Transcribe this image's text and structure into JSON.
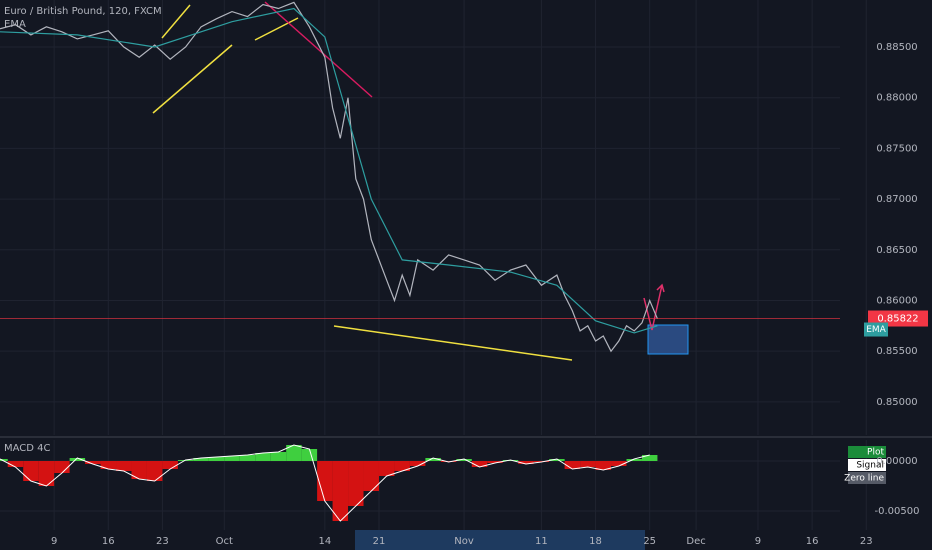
{
  "chart_data": [
    {
      "type": "line",
      "title": "Euro / British Pound, 120, FXCM",
      "subtitle": "EMA",
      "color": "#b2b5be",
      "x": [
        -7,
        -5,
        -3,
        -1,
        1,
        3,
        5,
        7,
        9,
        11,
        13,
        15,
        17,
        19,
        21,
        23,
        25,
        27,
        29,
        31,
        33,
        35,
        36,
        37,
        38,
        39,
        40,
        41,
        42,
        43,
        44,
        45,
        46,
        47,
        49,
        51,
        53,
        55,
        57,
        59,
        61,
        63,
        65,
        66,
        67,
        68,
        69,
        70,
        71,
        72,
        73,
        74,
        75,
        76,
        77,
        78
      ],
      "values": [
        0.8868,
        0.8872,
        0.8862,
        0.887,
        0.8865,
        0.8858,
        0.8862,
        0.8866,
        0.885,
        0.884,
        0.8852,
        0.8838,
        0.885,
        0.887,
        0.8878,
        0.8885,
        0.888,
        0.8892,
        0.8888,
        0.8894,
        0.887,
        0.884,
        0.879,
        0.876,
        0.88,
        0.872,
        0.87,
        0.866,
        0.864,
        0.862,
        0.86,
        0.8625,
        0.8605,
        0.864,
        0.863,
        0.8645,
        0.864,
        0.8635,
        0.862,
        0.863,
        0.8635,
        0.8615,
        0.8625,
        0.8605,
        0.859,
        0.857,
        0.8575,
        0.856,
        0.8565,
        0.855,
        0.856,
        0.8575,
        0.857,
        0.8578,
        0.86,
        0.8582
      ],
      "overlay": {
        "name": "EMA",
        "color": "#2e9ea0",
        "x": [
          -7,
          3,
          13,
          23,
          31,
          35,
          38,
          41,
          45,
          51,
          59,
          65,
          70,
          75,
          78
        ],
        "values": [
          0.8865,
          0.8862,
          0.885,
          0.8875,
          0.8888,
          0.886,
          0.878,
          0.87,
          0.864,
          0.8635,
          0.8628,
          0.8615,
          0.858,
          0.8568,
          0.8575
        ]
      },
      "last_price": {
        "value": 0.85822,
        "label": "0.85822"
      },
      "xlim": [
        -7,
        113.5
      ],
      "ylim": [
        0.84673,
        0.88964
      ],
      "yticks": [
        {
          "value": 0.885,
          "label": "0.88500"
        },
        {
          "value": 0.88,
          "label": "0.88000"
        },
        {
          "value": 0.875,
          "label": "0.87500"
        },
        {
          "value": 0.87,
          "label": "0.87000"
        },
        {
          "value": 0.865,
          "label": "0.86500"
        },
        {
          "value": 0.86,
          "label": "0.86000"
        },
        {
          "value": 0.855,
          "label": "0.85500"
        },
        {
          "value": 0.85,
          "label": "0.85000"
        }
      ],
      "xticks": [
        {
          "value": 0,
          "label": "9"
        },
        {
          "value": 7,
          "label": "16"
        },
        {
          "value": 14,
          "label": "23"
        },
        {
          "value": 22,
          "label": "Oct"
        },
        {
          "value": 35,
          "label": "14"
        },
        {
          "value": 42,
          "label": "21"
        },
        {
          "value": 53,
          "label": "Nov"
        },
        {
          "value": 63,
          "label": "11"
        },
        {
          "value": 70,
          "label": "18"
        },
        {
          "value": 77,
          "label": "25"
        },
        {
          "value": 83,
          "label": "Dec"
        },
        {
          "value": 91,
          "label": "9"
        },
        {
          "value": 98,
          "label": "16"
        },
        {
          "value": 105,
          "label": "23"
        }
      ],
      "grid": true
    },
    {
      "type": "bar",
      "title": "MACD 4C",
      "colors": {
        "positive": "#3fcf3f",
        "negative": "#d41212"
      },
      "x": [
        -7,
        -5,
        -3,
        -1,
        1,
        3,
        5,
        7,
        9,
        11,
        13,
        15,
        17,
        19,
        21,
        23,
        25,
        27,
        29,
        31,
        33,
        35,
        37,
        39,
        41,
        43,
        45,
        47,
        49,
        51,
        53,
        55,
        57,
        59,
        61,
        63,
        65,
        67,
        69,
        71,
        73,
        75,
        77
      ],
      "values": [
        0.0002,
        -0.0006,
        -0.002,
        -0.0025,
        -0.0012,
        0.0003,
        -0.0003,
        -0.0008,
        -0.001,
        -0.0018,
        -0.002,
        -0.0008,
        0.0001,
        0.0003,
        0.0004,
        0.0005,
        0.0006,
        0.0008,
        0.0009,
        0.0016,
        0.0012,
        -0.004,
        -0.006,
        -0.0045,
        -0.003,
        -0.0015,
        -0.001,
        -0.0005,
        0.0003,
        -0.0001,
        0.0002,
        -0.0006,
        -0.0002,
        0.0001,
        -0.0003,
        -0.0001,
        0.0002,
        -0.0008,
        -0.0006,
        -0.0009,
        -0.0005,
        0.0002,
        0.0006
      ],
      "ylim": [
        -0.0069,
        0.0021
      ],
      "yticks": [
        {
          "value": 0,
          "label": "0.00000"
        },
        {
          "value": -0.005,
          "label": "-0.00500"
        }
      ],
      "legend": [
        "Plot",
        "Signal",
        "Zero line"
      ]
    }
  ]
}
